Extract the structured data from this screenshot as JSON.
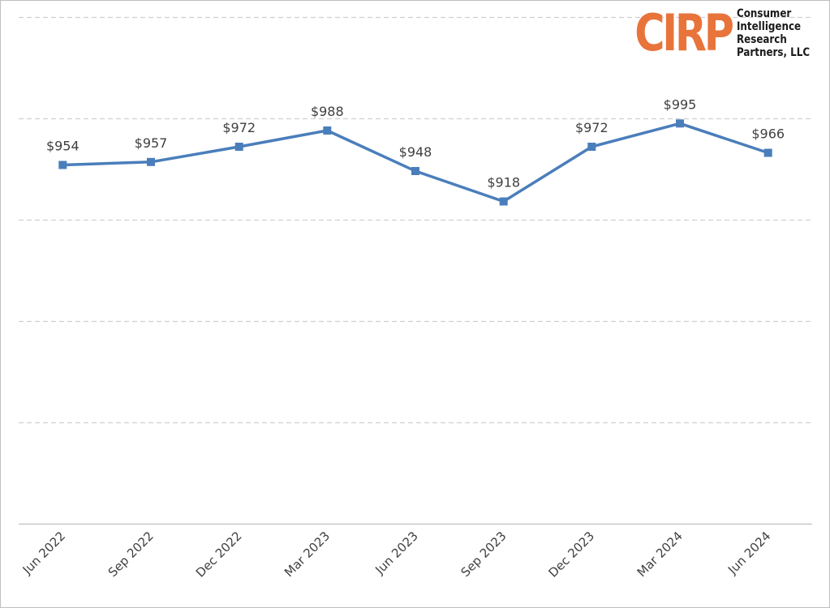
{
  "logo": {
    "mark": "CIRP",
    "lines": [
      "Consumer",
      "Intelligence",
      "Research",
      "Partners, LLC"
    ]
  },
  "chart_data": {
    "type": "line",
    "categories": [
      "Jun 2022",
      "Sep 2022",
      "Dec 2022",
      "Mar 2023",
      "Jun 2023",
      "Sep 2023",
      "Dec 2023",
      "Mar 2024",
      "Jun 2024"
    ],
    "series": [
      {
        "values": [
          954,
          957,
          972,
          988,
          948,
          918,
          972,
          995,
          966
        ],
        "labels": [
          "$954",
          "$957",
          "$972",
          "$988",
          "$948",
          "$918",
          "$972",
          "$995",
          "$966"
        ]
      }
    ],
    "ylim": [
      600,
      1100
    ],
    "yticks": [
      600,
      700,
      800,
      900,
      1000,
      1100
    ],
    "y_tick_labels_shown": false,
    "grid": true,
    "colors": {
      "line": "#4a7ebb",
      "grid": "#d0d0d0",
      "axis": "#bfbfbf",
      "logo_mark": "#e8743b"
    }
  }
}
